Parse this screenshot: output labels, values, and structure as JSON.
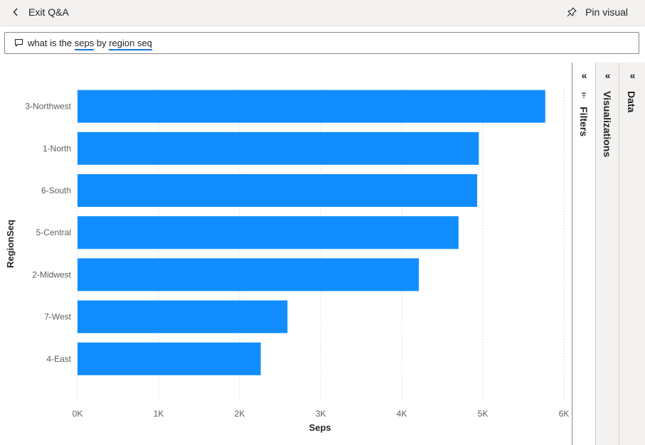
{
  "header": {
    "exit_label": "Exit Q&A",
    "pin_label": "Pin visual"
  },
  "question": {
    "prefix": "what is the ",
    "term1": "seps",
    "middle": " by ",
    "term2": "region seq",
    "icon": "chat-bubble-icon"
  },
  "panes": {
    "filters_label": "Filters",
    "visualizations_label": "Visualizations",
    "data_label": "Data"
  },
  "colors": {
    "bar": "#118dff",
    "underline": "#1d6fd9"
  },
  "chart_data": {
    "type": "bar",
    "orientation": "horizontal",
    "categories": [
      "3-Northwest",
      "1-North",
      "6-South",
      "5-Central",
      "2-Midwest",
      "7-West",
      "4-East"
    ],
    "values": [
      5770,
      4950,
      4930,
      4700,
      4210,
      2590,
      2260
    ],
    "xlabel": "Seps",
    "ylabel": "RegionSeq",
    "xlim": [
      0,
      6000
    ],
    "xticks": [
      "0K",
      "1K",
      "2K",
      "3K",
      "4K",
      "5K",
      "6K"
    ],
    "grid": "vertical dotted"
  }
}
